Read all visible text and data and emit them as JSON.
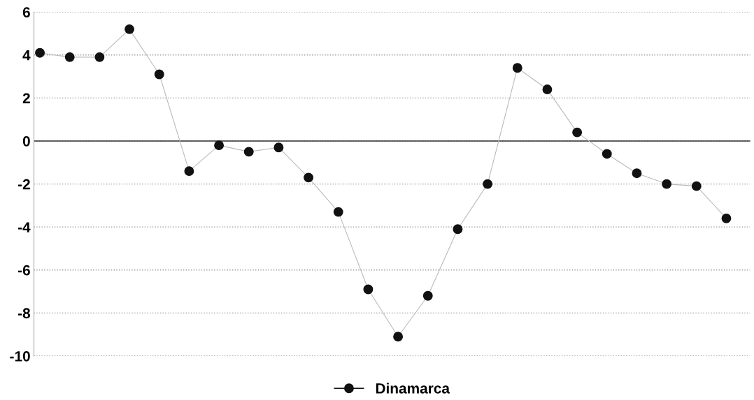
{
  "chart_data": {
    "type": "line",
    "categories": [
      null,
      null,
      null,
      null,
      null,
      null,
      null,
      null,
      null,
      null,
      null,
      null,
      null,
      null,
      null,
      null,
      null,
      null,
      null,
      null,
      null,
      null,
      null,
      null
    ],
    "series": [
      {
        "name": "Dinamarca",
        "color": "#111111",
        "values": [
          4.1,
          3.9,
          3.9,
          5.2,
          3.1,
          -1.4,
          -0.2,
          -0.5,
          -0.3,
          -1.7,
          -3.3,
          -6.9,
          -9.1,
          -7.2,
          -4.1,
          -2.0,
          3.4,
          2.4,
          0.4,
          -0.6,
          -1.5,
          -2.0,
          -2.1,
          -3.6
        ]
      }
    ],
    "ylim": [
      -10,
      6
    ],
    "yticks": [
      -10,
      -8,
      -6,
      -4,
      -2,
      0,
      2,
      4,
      6
    ],
    "ref_lines": [
      {
        "axis": "y",
        "value": 0,
        "color": "#333333",
        "line_style": "solid"
      }
    ],
    "grid": "y",
    "legend": "bottom",
    "marker": "circle",
    "line_style": "solid"
  }
}
